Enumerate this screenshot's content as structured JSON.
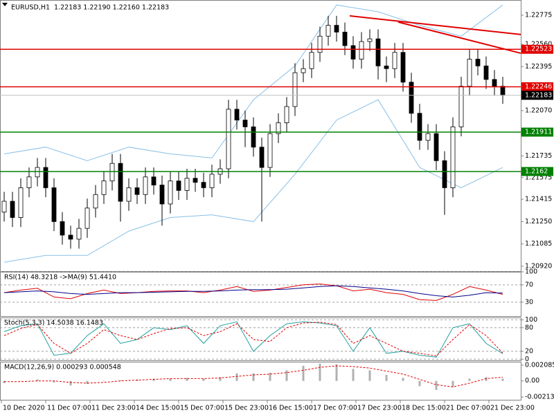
{
  "chart_data": [
    {
      "type": "candlestick",
      "title": "EURUSD,H1",
      "subtitle": "1.22183 1.22190 1.22160 1.22183",
      "x_labels": [
        "10 Dec 2020",
        "11 Dec 07:00",
        "11 Dec 23:00",
        "14 Dec 15:00",
        "15 Dec 07:00",
        "15 Dec 23:00",
        "16 Dec 15:00",
        "17 Dec 07:00",
        "17 Dec 23:00",
        "18 Dec 15:00",
        "21 Dec 07:00",
        "21 Dec 23:00"
      ],
      "open": [
        1.2132,
        1.214,
        1.2128,
        1.215,
        1.2158,
        1.2165,
        1.215,
        1.2125,
        1.2115,
        1.2112,
        1.212,
        1.2135,
        1.2145,
        1.2155,
        1.2168,
        1.214,
        1.215,
        1.2145,
        1.2158,
        1.2152,
        1.2138,
        1.2155,
        1.2148,
        1.2157,
        1.2154,
        1.215,
        1.216,
        1.2164,
        1.2208,
        1.22,
        1.2195,
        1.218,
        1.2165,
        1.219,
        1.2198,
        1.221,
        1.2235,
        1.2238,
        1.225,
        1.2262,
        1.227,
        1.2265,
        1.2255,
        1.2245,
        1.2258,
        1.226,
        1.224,
        1.2238,
        1.225,
        1.2228,
        1.2205,
        1.2185,
        1.219,
        1.217,
        1.215,
        1.2195,
        1.2225,
        1.2245,
        1.224,
        1.223,
        1.2225
      ],
      "high": [
        1.2147,
        1.2147,
        1.2157,
        1.2165,
        1.2172,
        1.2172,
        1.2157,
        1.2132,
        1.2122,
        1.2127,
        1.2142,
        1.2152,
        1.2162,
        1.2175,
        1.2175,
        1.2157,
        1.2157,
        1.2165,
        1.2165,
        1.2159,
        1.2162,
        1.2162,
        1.2164,
        1.2164,
        1.2161,
        1.2167,
        1.2171,
        1.2215,
        1.2215,
        1.2207,
        1.2202,
        1.2187,
        1.2197,
        1.2205,
        1.2217,
        1.2242,
        1.2245,
        1.2257,
        1.2269,
        1.2277,
        1.2277,
        1.2272,
        1.2262,
        1.2265,
        1.2267,
        1.2267,
        1.2247,
        1.2257,
        1.2257,
        1.2235,
        1.2212,
        1.2197,
        1.2197,
        1.2177,
        1.2202,
        1.2232,
        1.2252,
        1.2252,
        1.2247,
        1.2237,
        1.2232
      ],
      "low": [
        1.2125,
        1.2121,
        1.2121,
        1.2143,
        1.2151,
        1.2143,
        1.2118,
        1.2108,
        1.2105,
        1.2105,
        1.2113,
        1.2128,
        1.2138,
        1.2148,
        1.2125,
        1.2133,
        1.2138,
        1.2138,
        1.2145,
        1.2122,
        1.2131,
        1.2141,
        1.2141,
        1.2147,
        1.2143,
        1.2143,
        1.2153,
        1.2157,
        1.2193,
        1.218,
        1.2173,
        1.2125,
        1.2158,
        1.2183,
        1.2191,
        1.2203,
        1.2228,
        1.2231,
        1.2243,
        1.2255,
        1.2258,
        1.2248,
        1.2238,
        1.2238,
        1.2251,
        1.223,
        1.2228,
        1.2231,
        1.2221,
        1.2198,
        1.2178,
        1.2178,
        1.2163,
        1.213,
        1.2143,
        1.2188,
        1.2218,
        1.2233,
        1.2223,
        1.2218,
        1.2212
      ],
      "close": [
        1.214,
        1.2128,
        1.215,
        1.2158,
        1.2165,
        1.215,
        1.2125,
        1.2115,
        1.2112,
        1.212,
        1.2135,
        1.2145,
        1.2155,
        1.2168,
        1.214,
        1.215,
        1.2145,
        1.2158,
        1.2152,
        1.2138,
        1.2155,
        1.2148,
        1.2157,
        1.2154,
        1.215,
        1.216,
        1.2164,
        1.2208,
        1.22,
        1.2195,
        1.218,
        1.2165,
        1.219,
        1.2198,
        1.221,
        1.2235,
        1.2238,
        1.225,
        1.2262,
        1.227,
        1.2265,
        1.2255,
        1.2245,
        1.2258,
        1.226,
        1.224,
        1.2238,
        1.225,
        1.2228,
        1.2205,
        1.2185,
        1.219,
        1.217,
        1.215,
        1.2195,
        1.2225,
        1.2245,
        1.224,
        1.223,
        1.2225,
        1.22183
      ],
      "up_color": "#ffffff",
      "down_color": "#000000",
      "wick_color": "#000000",
      "bands": [
        {
          "color": "#87bfe6",
          "values": [
            1.2175,
            1.218,
            1.217,
            1.218,
            1.2175,
            1.2172,
            1.2215,
            1.224,
            1.2285,
            1.228,
            1.227,
            1.2262,
            1.2285
          ]
        },
        {
          "color": "#87bfe6",
          "values": [
            1.2095,
            1.21,
            1.21,
            1.2118,
            1.2128,
            1.213,
            1.2125,
            1.216,
            1.22,
            1.2215,
            1.2165,
            1.215,
            1.2165
          ]
        }
      ],
      "levels": [
        {
          "value": 1.22523,
          "color": "#e00000",
          "label_color": "#e00000"
        },
        {
          "value": 1.22246,
          "color": "#e00000",
          "label_color": "#e00000"
        },
        {
          "value": 1.22183,
          "color": "#c0c0c0",
          "label_color": "#000000"
        },
        {
          "value": 1.21911,
          "color": "#008000",
          "label_color": "#008000"
        },
        {
          "value": 1.2162,
          "color": "#008000",
          "label_color": "#008000"
        }
      ],
      "trendlines": [
        {
          "start": 1.2277,
          "end": 1.22632,
          "color": "#e00000"
        },
        {
          "start": 1.22724,
          "end": 1.22494,
          "color": "#e00000"
        }
      ],
      "ylim": [
        1.20884,
        1.22887
      ],
      "yticks": [
        1.22775,
        {
          "value": 1.2256,
          "label": "1.22560"
        },
        1.22395,
        {
          "value": 1.2207,
          "label": "1.22070"
        },
        1.21735,
        1.21575,
        1.21415,
        {
          "value": 1.2125,
          "label": "1.21250"
        },
        1.21085,
        {
          "value": 1.2092,
          "label": "1.20920"
        }
      ]
    },
    {
      "type": "line",
      "title": "RSI(14) 48.3218 ->MA(9) 51.4410",
      "grid": "dashed",
      "series": [
        {
          "color": "#e00000",
          "style": "solid",
          "values": [
            52,
            58,
            62,
            42,
            38,
            50,
            58,
            50,
            52,
            55,
            56,
            56,
            52,
            58,
            66,
            55,
            58,
            64,
            70,
            72,
            68,
            56,
            60,
            52,
            48,
            36,
            34,
            48,
            66,
            58,
            48
          ]
        },
        {
          "color": "#00008b",
          "style": "solid",
          "values": [
            52,
            54,
            56,
            54,
            50,
            48,
            50,
            52,
            52,
            53,
            54,
            55,
            55,
            56,
            58,
            59,
            59,
            60,
            63,
            66,
            68,
            66,
            63,
            60,
            56,
            50,
            45,
            42,
            46,
            52,
            51
          ]
        }
      ],
      "ylim": [
        -2,
        100
      ],
      "yticks": [
        100,
        70,
        30
      ]
    },
    {
      "type": "line",
      "title": "Stoch(5,3,3) 14.5038 16.1483",
      "grid": "dashed",
      "series": [
        {
          "color": "#20a0a0",
          "style": "solid",
          "values": [
            70,
            85,
            90,
            10,
            15,
            60,
            90,
            40,
            50,
            80,
            75,
            85,
            40,
            85,
            95,
            20,
            60,
            90,
            95,
            92,
            85,
            20,
            80,
            15,
            20,
            10,
            5,
            80,
            90,
            40,
            14
          ]
        },
        {
          "color": "#e00000",
          "style": "dashed",
          "values": [
            60,
            78,
            88,
            40,
            15,
            40,
            75,
            60,
            50,
            65,
            78,
            80,
            60,
            70,
            90,
            50,
            45,
            80,
            92,
            94,
            88,
            40,
            60,
            40,
            20,
            15,
            8,
            50,
            88,
            60,
            16
          ]
        }
      ],
      "ylim": [
        -3,
        106
      ],
      "yticks": [
        100,
        80,
        20,
        0
      ]
    },
    {
      "type": "macd",
      "title": "MACD(12,26,9) 0.000293 0.000548",
      "series": [
        {
          "kind": "bar",
          "color": "#b0b0b0",
          "values": [
            -0.0003,
            0,
            0.0002,
            -0.0002,
            -0.0006,
            -0.0004,
            0,
            0.0001,
            0.0002,
            0.0003,
            0.0003,
            0.0004,
            0.0003,
            0.0005,
            0.001,
            0.001,
            0.0011,
            0.0014,
            0.002,
            0.0023,
            0.0022,
            0.0016,
            0.0014,
            0.0008,
            0.0004,
            -0.0007,
            -0.0012,
            -0.0008,
            0.0003,
            0.0005,
            0.0003
          ]
        },
        {
          "kind": "line",
          "color": "#e00000",
          "style": "dashed",
          "values": [
            -0.0001,
            -0.0001,
            0,
            0,
            -0.0002,
            -0.0003,
            -0.0002,
            0,
            0.0001,
            0.0002,
            0.0003,
            0.0003,
            0.0003,
            0.0004,
            0.0006,
            0.0008,
            0.0009,
            0.0011,
            0.0014,
            0.0018,
            0.002,
            0.0019,
            0.0017,
            0.0013,
            0.0009,
            0.0002,
            -0.0005,
            -0.0008,
            -0.0003,
            0.0003,
            0.0005
          ]
        }
      ],
      "ylim": [
        -0.0025,
        0.00254
      ],
      "yticks": [
        0.002085,
        {
          "value": 0,
          "label": "0.00"
        },
        -0.002139
      ]
    }
  ]
}
